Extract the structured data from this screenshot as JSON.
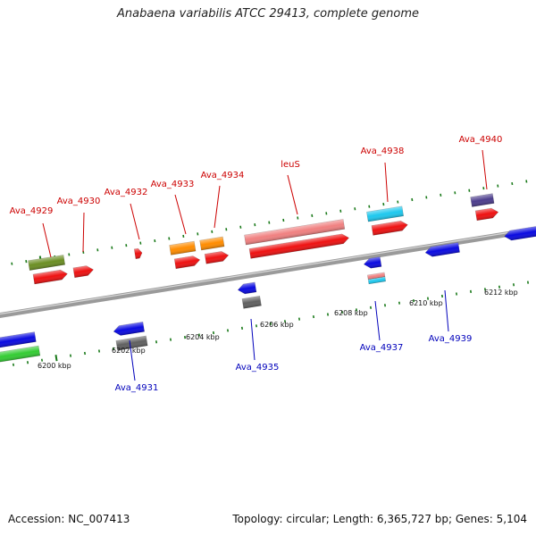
{
  "title": "Anabaena variabilis ATCC 29413, complete genome",
  "footer": {
    "accession": "Accession: NC_007413",
    "summary": "Topology: circular; Length: 6,365,727 bp; Genes: 5,104"
  },
  "colors": {
    "forward_label": "#cc0000",
    "reverse_label": "#0000bb",
    "backbone": "#8a8a8a",
    "tick": "#1a7a1a"
  },
  "map": {
    "scale_labels": [
      "6200 kbp",
      "6202 kbp",
      "6204 kbp",
      "6206 kbp",
      "6208 kbp",
      "6210 kbp",
      "6212 kbp"
    ],
    "forward_labels": [
      "Ava_4929",
      "Ava_4930",
      "Ava_4932",
      "Ava_4933",
      "Ava_4934",
      "leuS",
      "Ava_4938",
      "Ava_4940"
    ],
    "reverse_labels": [
      "Ava_4931",
      "Ava_4935",
      "Ava_4937",
      "Ava_4939"
    ]
  }
}
